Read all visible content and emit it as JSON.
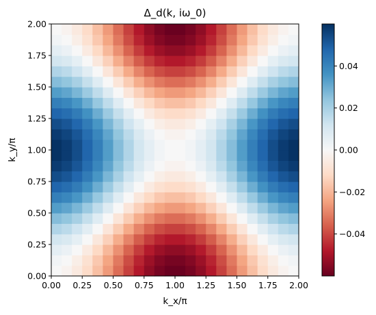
{
  "chart_data": {
    "type": "heatmap",
    "title": "Δ_d(k, iω_0)",
    "xlabel": "k_x/π",
    "ylabel": "k_y/π",
    "xlim": [
      0,
      2
    ],
    "ylim": [
      0,
      2
    ],
    "grid": false,
    "colormap": "RdBu",
    "colormap_low_color": "#67001f",
    "colormap_high_color": "#053061",
    "value_range": [
      -0.06,
      0.06
    ],
    "formula": "0.03 * (cos(pi*kx) - cos(pi*ky))",
    "x_ticks": [
      {
        "value": 0.0,
        "label": "0.00"
      },
      {
        "value": 0.25,
        "label": "0.25"
      },
      {
        "value": 0.5,
        "label": "0.50"
      },
      {
        "value": 0.75,
        "label": "0.75"
      },
      {
        "value": 1.0,
        "label": "1.00"
      },
      {
        "value": 1.25,
        "label": "1.25"
      },
      {
        "value": 1.5,
        "label": "1.50"
      },
      {
        "value": 1.75,
        "label": "1.75"
      },
      {
        "value": 2.0,
        "label": "2.00"
      }
    ],
    "y_ticks": [
      {
        "value": 0.0,
        "label": "0.00"
      },
      {
        "value": 0.25,
        "label": "0.25"
      },
      {
        "value": 0.5,
        "label": "0.50"
      },
      {
        "value": 0.75,
        "label": "0.75"
      },
      {
        "value": 1.0,
        "label": "1.00"
      },
      {
        "value": 1.25,
        "label": "1.25"
      },
      {
        "value": 1.5,
        "label": "1.50"
      },
      {
        "value": 1.75,
        "label": "1.75"
      },
      {
        "value": 2.0,
        "label": "2.00"
      }
    ],
    "colorbar_ticks": [
      {
        "value": 0.04,
        "label": "0.04"
      },
      {
        "value": 0.02,
        "label": "0.02"
      },
      {
        "value": 0.0,
        "label": "0.00"
      },
      {
        "value": -0.02,
        "label": "−0.02"
      },
      {
        "value": -0.04,
        "label": "−0.04"
      }
    ],
    "grid_size": 24
  }
}
